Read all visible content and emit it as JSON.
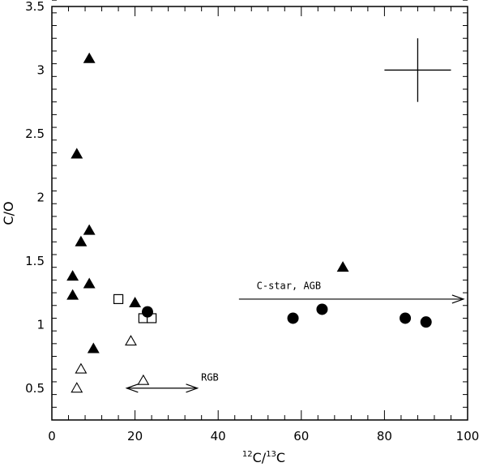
{
  "chart_data": {
    "type": "scatter",
    "xlabel": "12C/13C",
    "xlabel_parts": {
      "sup1": "12",
      "main1": "C/",
      "sup2": "13",
      "main2": "C"
    },
    "ylabel": "C/O",
    "xlim": [
      0,
      100
    ],
    "ylim": [
      0.25,
      3.5
    ],
    "x_ticks_major": [
      0,
      20,
      40,
      60,
      80,
      100
    ],
    "x_ticks_minor_step": 4,
    "y_ticks_major": [
      0.5,
      1,
      1.5,
      2,
      2.5,
      3,
      3.5
    ],
    "y_tick_labels": [
      "0.5",
      "1",
      "1.5",
      "2",
      "2.5",
      "3",
      "3.5"
    ],
    "y_ticks_minor_step": 0.1,
    "grid": false,
    "series": [
      {
        "marker": "filled-triangle",
        "points": [
          {
            "x": 9,
            "y": 3.09
          },
          {
            "x": 6,
            "y": 2.34
          },
          {
            "x": 9,
            "y": 1.74
          },
          {
            "x": 7,
            "y": 1.65
          },
          {
            "x": 5,
            "y": 1.38
          },
          {
            "x": 9,
            "y": 1.32
          },
          {
            "x": 5,
            "y": 1.23
          },
          {
            "x": 20,
            "y": 1.17
          },
          {
            "x": 10,
            "y": 0.81
          },
          {
            "x": 70,
            "y": 1.45
          }
        ]
      },
      {
        "marker": "open-triangle",
        "points": [
          {
            "x": 19,
            "y": 0.87
          },
          {
            "x": 7,
            "y": 0.65
          },
          {
            "x": 22,
            "y": 0.56
          },
          {
            "x": 6,
            "y": 0.5
          }
        ]
      },
      {
        "marker": "open-square",
        "points": [
          {
            "x": 16,
            "y": 1.2
          },
          {
            "x": 22,
            "y": 1.05
          },
          {
            "x": 24,
            "y": 1.05
          }
        ]
      },
      {
        "marker": "filled-circle",
        "points": [
          {
            "x": 23,
            "y": 1.1
          },
          {
            "x": 58,
            "y": 1.05
          },
          {
            "x": 65,
            "y": 1.12
          },
          {
            "x": 85,
            "y": 1.05
          },
          {
            "x": 90,
            "y": 1.02
          }
        ]
      }
    ],
    "error_cross": {
      "x": 88,
      "y": 3.0,
      "dx": 8,
      "dy": 0.25
    },
    "annotations": [
      {
        "text": "RGB",
        "arrow": "double",
        "x1": 18,
        "x2": 35,
        "y": 0.5,
        "label_x": 38,
        "label_y": 0.56
      },
      {
        "text": "C-star, AGB",
        "arrow": "right",
        "x1": 45,
        "x2": 99,
        "y": 1.2,
        "label_x": 57,
        "label_y": 1.28
      }
    ]
  }
}
